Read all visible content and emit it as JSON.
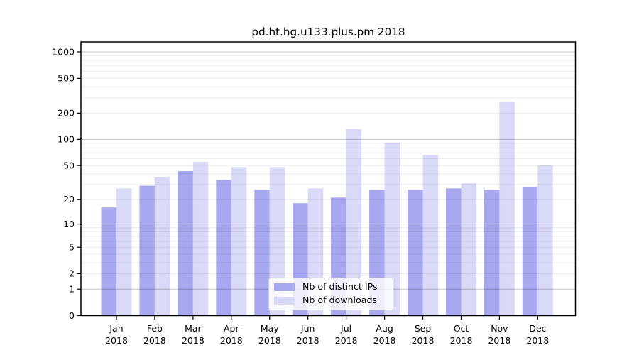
{
  "chart_data": {
    "type": "bar",
    "title": "pd.ht.hg.u133.plus.pm 2018",
    "y_scale": "log1p",
    "grid": true,
    "legend_position": "lower center",
    "categories": [
      "Jan 2018",
      "Feb 2018",
      "Mar 2018",
      "Apr 2018",
      "May 2018",
      "Jun 2018",
      "Jul 2018",
      "Aug 2018",
      "Sep 2018",
      "Oct 2018",
      "Nov 2018",
      "Dec 2018"
    ],
    "series": [
      {
        "name": "Nb of distinct IPs",
        "color": "#a8a8f0",
        "values": [
          16,
          29,
          43,
          34,
          26,
          18,
          21,
          26,
          26,
          27,
          26,
          28
        ]
      },
      {
        "name": "Nb of downloads",
        "color": "#d9d9f8",
        "values": [
          27,
          37,
          55,
          48,
          48,
          27,
          132,
          92,
          66,
          31,
          270,
          50
        ]
      }
    ],
    "ytick_labels": [
      0,
      1,
      2,
      5,
      10,
      20,
      50,
      100,
      200,
      500,
      1000
    ],
    "ylim": [
      0,
      1290
    ],
    "xlabel": "",
    "ylabel": ""
  }
}
